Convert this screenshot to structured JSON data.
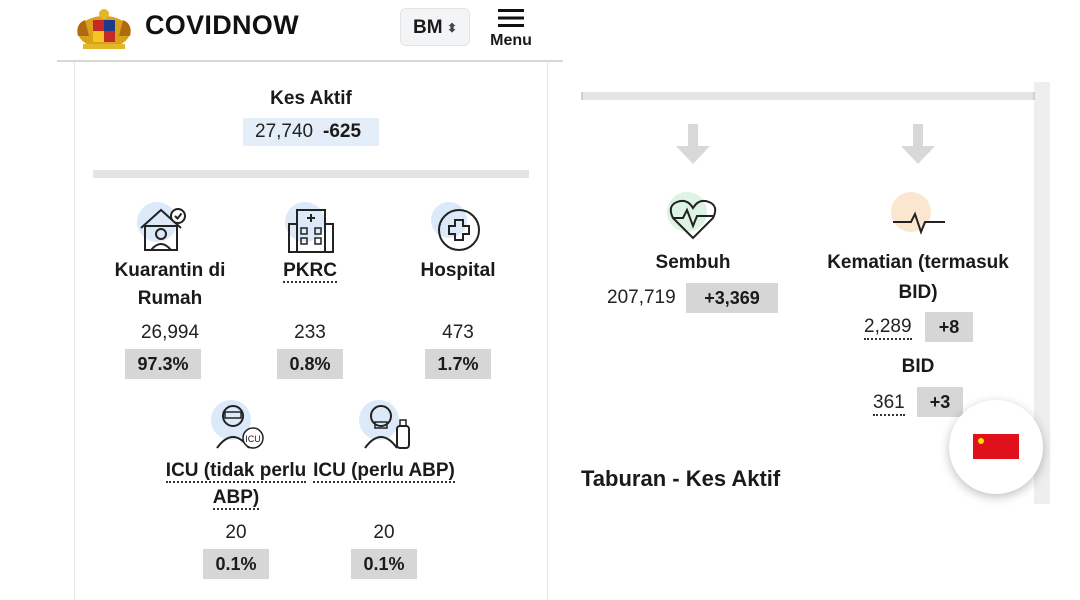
{
  "header": {
    "brand": "COVIDNOW",
    "language": "BM",
    "menu_label": "Menu"
  },
  "active": {
    "title": "Kes Aktif",
    "value": "27,740",
    "delta": "-625"
  },
  "categories": [
    {
      "label_line1": "Kuarantin di",
      "label_line2": "Rumah",
      "value": "26,994",
      "percent": "97.3%",
      "icon": "home-quarantine-icon"
    },
    {
      "label_line1": "PKRC",
      "label_line2": "",
      "value": "233",
      "percent": "0.8%",
      "icon": "building-icon"
    },
    {
      "label_line1": "Hospital",
      "label_line2": "",
      "value": "473",
      "percent": "1.7%",
      "icon": "hospital-cross-icon"
    },
    {
      "label_line1": "ICU (tidak perlu",
      "label_line2": "ABP)",
      "value": "20",
      "percent": "0.1%",
      "icon": "icu-patient-icon"
    },
    {
      "label_line1": "ICU (perlu ABP)",
      "label_line2": "",
      "value": "20",
      "percent": "0.1%",
      "icon": "ventilator-patient-icon"
    }
  ],
  "recovered": {
    "title": "Sembuh",
    "value": "207,719",
    "delta": "+3,369",
    "icon": "heart-pulse-icon"
  },
  "deaths": {
    "title_line1": "Kematian (termasuk",
    "title_line2": "BID)",
    "value": "2,289",
    "delta": "+8",
    "icon": "ecg-line-icon"
  },
  "bid": {
    "title": "BID",
    "value": "361",
    "delta": "+3"
  },
  "section_title": "Taburan - Kes Aktif",
  "colors": {
    "accent_blue": "#e3eef9",
    "pill_gray": "#d6d6d6",
    "flag_red": "#e0111b"
  }
}
